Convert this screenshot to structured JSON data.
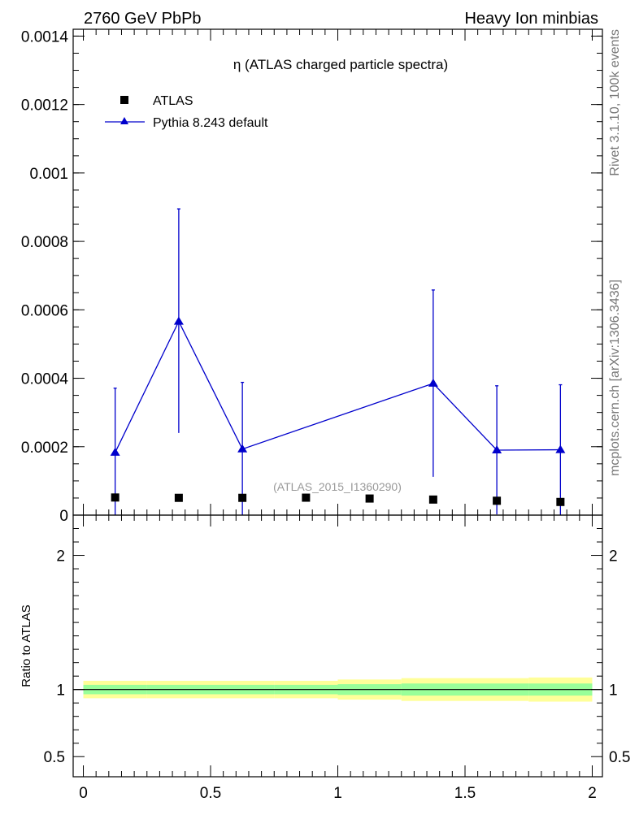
{
  "header": {
    "left": "2760 GeV PbPb",
    "right": "Heavy Ion minbias"
  },
  "side_text": {
    "rivet": "Rivet 3.1.10,  100k events",
    "mcplots": "mcplots.cern.ch [arXiv:1306.3436]"
  },
  "chart_data": [
    {
      "panel": "main",
      "type": "scatter",
      "title": "η (ATLAS charged particle spectra)",
      "watermark": "(ATLAS_2015_I1360290)",
      "xlim": [
        -0.04,
        2.04
      ],
      "ylim": [
        0,
        0.00142
      ],
      "yticks": [
        {
          "v": 0,
          "label": "0"
        },
        {
          "v": 0.0002,
          "label": "0.0002"
        },
        {
          "v": 0.0004,
          "label": "0.0004"
        },
        {
          "v": 0.0006,
          "label": "0.0006"
        },
        {
          "v": 0.0008,
          "label": "0.0008"
        },
        {
          "v": 0.001,
          "label": "0.001"
        },
        {
          "v": 0.0012,
          "label": "0.0012"
        },
        {
          "v": 0.0014,
          "label": "0.0014"
        }
      ],
      "legend": {
        "placement": "top-left",
        "entries": [
          "ATLAS",
          "Pythia 8.243 default"
        ]
      },
      "series": [
        {
          "name": "ATLAS",
          "marker": "square",
          "color": "#000000",
          "x": [
            0.125,
            0.375,
            0.625,
            0.875,
            1.125,
            1.375,
            1.625,
            1.875
          ],
          "y": [
            5.15e-05,
            5.05e-05,
            5.05e-05,
            5.1e-05,
            4.85e-05,
            4.55e-05,
            4.2e-05,
            3.85e-05
          ]
        },
        {
          "name": "Pythia 8.243 default",
          "marker": "triangle",
          "color": "#0000cc",
          "x": [
            0.125,
            0.375,
            0.625,
            1.375,
            1.625,
            1.875
          ],
          "y": [
            0.000183,
            0.000566,
            0.000193,
            0.000385,
            0.00019,
            0.000191
          ],
          "err_up": [
            0.000188,
            0.000329,
            0.000195,
            0.000273,
            0.000188,
            0.00019
          ],
          "err_down": [
            0.000188,
            0.000326,
            0.000195,
            0.000273,
            0.000188,
            0.00019
          ],
          "line_x": [
            0.125,
            0.375,
            0.625,
            1.375,
            1.625,
            1.875
          ],
          "line_y": [
            0.000183,
            0.000566,
            0.000193,
            0.000385,
            0.00019,
            0.000191
          ]
        }
      ]
    },
    {
      "panel": "ratio",
      "type": "area",
      "ylabel": "Ratio to ATLAS",
      "xlim": [
        -0.04,
        2.04
      ],
      "ylim": [
        0.35,
        2.3
      ],
      "xticks": [
        {
          "v": 0,
          "label": "0"
        },
        {
          "v": 0.5,
          "label": "0.5"
        },
        {
          "v": 1,
          "label": "1"
        },
        {
          "v": 1.5,
          "label": "1.5"
        },
        {
          "v": 2,
          "label": "2"
        }
      ],
      "yticks": [
        {
          "v": 0.5,
          "label": "0.5"
        },
        {
          "v": 1,
          "label": "1"
        },
        {
          "v": 2,
          "label": "2"
        }
      ],
      "bands": {
        "edges": [
          0,
          0.25,
          0.5,
          0.75,
          1,
          1.25,
          1.5,
          1.75,
          2
        ],
        "yellow_lo": [
          0.935,
          0.935,
          0.935,
          0.935,
          0.925,
          0.915,
          0.915,
          0.91
        ],
        "yellow_hi": [
          1.065,
          1.065,
          1.065,
          1.065,
          1.075,
          1.085,
          1.085,
          1.09
        ],
        "green_lo": [
          0.965,
          0.965,
          0.965,
          0.965,
          0.96,
          0.955,
          0.955,
          0.955
        ],
        "green_hi": [
          1.035,
          1.035,
          1.035,
          1.035,
          1.04,
          1.045,
          1.045,
          1.045
        ]
      },
      "colors": {
        "yellow": "#ffff99",
        "green": "#99ff99"
      }
    }
  ]
}
